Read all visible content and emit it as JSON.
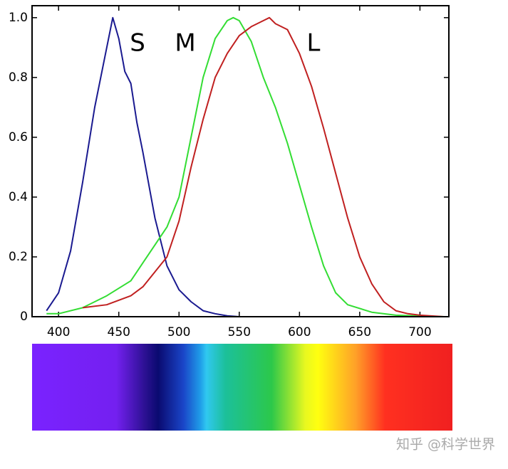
{
  "chart_data": {
    "type": "line",
    "annotations": [
      "S",
      "M",
      "L"
    ],
    "watermark": "知乎 @科学世界",
    "xlim": [
      378,
      724
    ],
    "ylim": [
      0,
      1.04
    ],
    "xticks": [
      400,
      450,
      500,
      550,
      600,
      650,
      700
    ],
    "yticks": [
      0,
      0.2,
      0.4,
      0.6,
      0.8,
      {
        "value": 1,
        "label": "1.0"
      }
    ],
    "series": [
      {
        "name": "S",
        "color": "#1a1a90",
        "x": [
          390,
          400,
          410,
          420,
          430,
          440,
          445,
          450,
          455,
          460,
          465,
          470,
          480,
          490,
          500,
          510,
          520,
          530,
          540,
          550,
          600,
          650,
          700,
          720
        ],
        "values": [
          0.02,
          0.08,
          0.22,
          0.45,
          0.7,
          0.9,
          1.0,
          0.93,
          0.82,
          0.78,
          0.65,
          0.55,
          0.33,
          0.17,
          0.09,
          0.05,
          0.02,
          0.01,
          0.003,
          0,
          0,
          0,
          0,
          0
        ]
      },
      {
        "name": "M",
        "color": "#33dd33",
        "x": [
          390,
          400,
          420,
          440,
          460,
          470,
          480,
          490,
          500,
          510,
          520,
          530,
          540,
          545,
          550,
          560,
          570,
          580,
          590,
          600,
          610,
          620,
          630,
          640,
          660,
          680,
          700,
          720
        ],
        "values": [
          0.01,
          0.01,
          0.03,
          0.07,
          0.12,
          0.18,
          0.24,
          0.3,
          0.4,
          0.6,
          0.8,
          0.93,
          0.99,
          1.0,
          0.99,
          0.92,
          0.8,
          0.7,
          0.58,
          0.44,
          0.3,
          0.17,
          0.08,
          0.04,
          0.015,
          0.005,
          0.002,
          0
        ]
      },
      {
        "name": "L",
        "color": "#c02020",
        "x": [
          420,
          440,
          460,
          470,
          480,
          490,
          500,
          510,
          520,
          530,
          540,
          550,
          560,
          570,
          575,
          580,
          590,
          600,
          610,
          620,
          630,
          640,
          650,
          660,
          670,
          680,
          690,
          700,
          720
        ],
        "values": [
          0.03,
          0.04,
          0.07,
          0.1,
          0.15,
          0.2,
          0.32,
          0.5,
          0.66,
          0.8,
          0.88,
          0.94,
          0.97,
          0.99,
          1.0,
          0.98,
          0.96,
          0.88,
          0.77,
          0.63,
          0.48,
          0.33,
          0.2,
          0.11,
          0.05,
          0.02,
          0.01,
          0.005,
          0
        ]
      }
    ]
  }
}
